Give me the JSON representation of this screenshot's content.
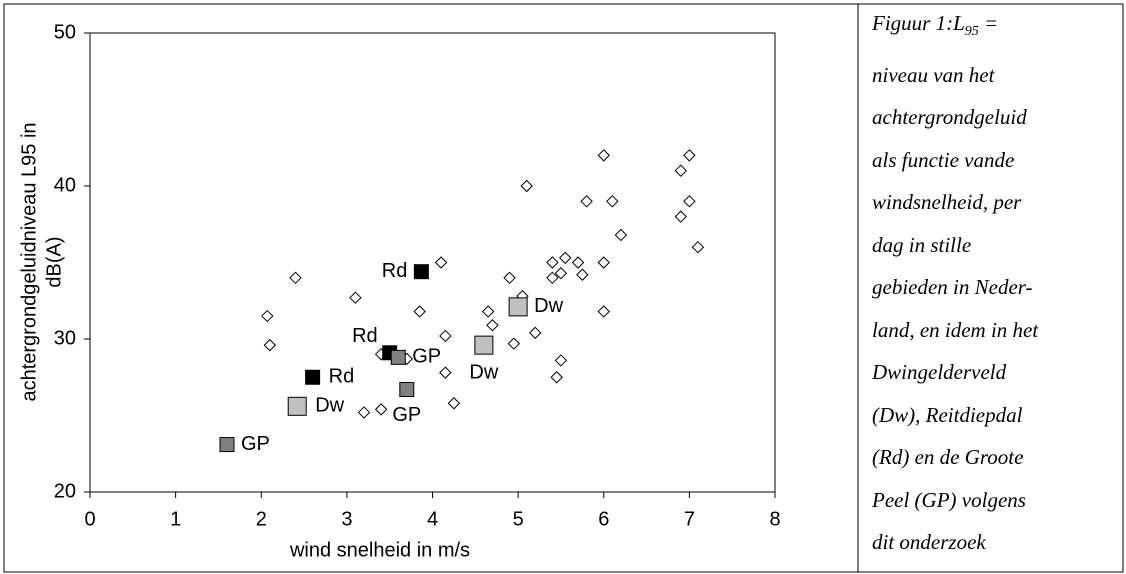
{
  "chart_data": {
    "type": "scatter",
    "xlabel": "wind snelheid in m/s",
    "ylabel": [
      "achtergrondgeluidniveau L95 in",
      "dB(A)"
    ],
    "xlim": [
      0,
      8
    ],
    "xticks": [
      0,
      1,
      2,
      3,
      4,
      5,
      6,
      7,
      8
    ],
    "ylim": [
      20,
      50
    ],
    "yticks": [
      20,
      30,
      40,
      50
    ],
    "series": [
      {
        "marker": "diamond",
        "color": "#ffffff",
        "x": [
          2.07,
          2.1,
          2.4,
          3.1,
          3.2,
          3.4,
          3.4,
          3.85,
          3.7,
          4.1,
          4.15,
          4.15,
          4.25,
          4.65,
          4.7,
          4.9,
          4.95,
          5.05,
          5.1,
          5.2,
          5.4,
          5.4,
          5.45,
          5.5,
          5.5,
          5.55,
          5.7,
          5.75,
          5.8,
          6.0,
          6.0,
          6.0,
          6.1,
          6.2,
          6.9,
          6.9,
          7.0,
          7.0,
          7.1
        ],
        "values": [
          31.5,
          29.6,
          34,
          32.7,
          25.2,
          25.4,
          29,
          31.8,
          28.7,
          35,
          30.2,
          27.8,
          25.8,
          31.8,
          30.9,
          34,
          29.7,
          32.8,
          40,
          30.4,
          34,
          35,
          27.5,
          28.6,
          34.3,
          35.3,
          35,
          34.2,
          39,
          42,
          35,
          31.8,
          39,
          36.8,
          41,
          38,
          42,
          39,
          36
        ]
      },
      {
        "name": "Rd",
        "marker": "square",
        "color": "#000000",
        "x": [
          3.87,
          2.6,
          3.5
        ],
        "values": [
          34.4,
          27.5,
          29.1
        ]
      },
      {
        "name": "Dw",
        "marker": "square",
        "color": "#c0c0c0",
        "x": [
          2.42,
          4.6,
          5.0
        ],
        "values": [
          25.6,
          29.6,
          32.1
        ]
      },
      {
        "name": "GP",
        "marker": "square",
        "color": "#808080",
        "x": [
          1.6,
          3.7,
          3.6
        ],
        "values": [
          23.1,
          26.7,
          28.8
        ]
      }
    ]
  },
  "caption": {
    "prefix": "Figuur 1:L",
    "sub": "95",
    "suffix": " =",
    "lines": [
      "niveau van het",
      "achtergrondgeluid",
      "als functie vande",
      "windsnelheid, per",
      "dag in stille",
      "gebieden in Neder-",
      "land, en idem in het",
      "Dwingelderveld",
      "(Dw), Reitdiepdal",
      "(Rd) en de Groote",
      "Peel (GP) volgens",
      "dit onderzoek"
    ]
  }
}
